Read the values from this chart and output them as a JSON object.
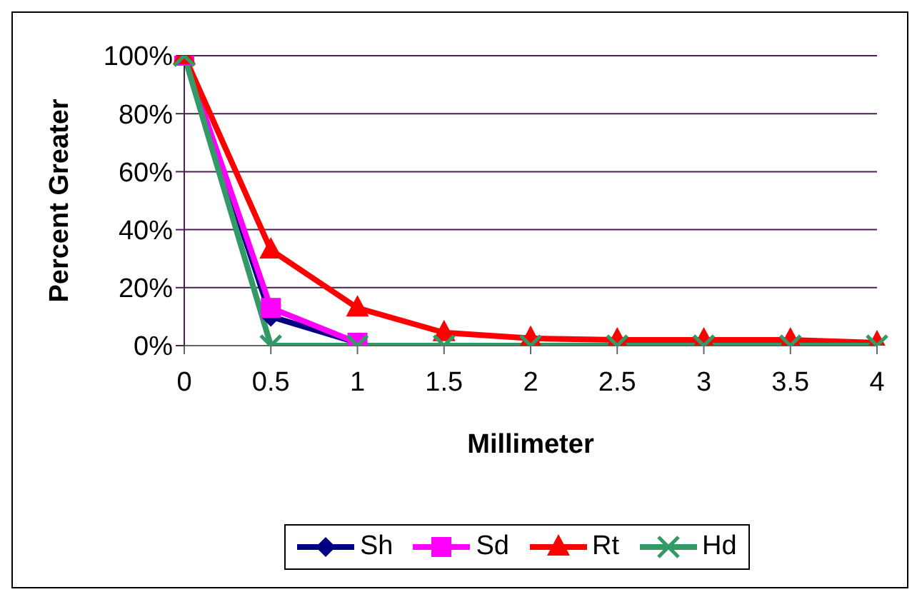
{
  "chart_data": {
    "type": "line",
    "xlabel": "Millimeter",
    "ylabel": "Percent Greater",
    "categories": [
      "0",
      "0.5",
      "1",
      "1.5",
      "2",
      "2.5",
      "3",
      "3.5",
      "4"
    ],
    "series": [
      {
        "name": "Sh",
        "color": "#000080",
        "marker": "diamond",
        "values": [
          100,
          10,
          1,
          null,
          null,
          null,
          null,
          null,
          null
        ]
      },
      {
        "name": "Sd",
        "color": "#ff00ff",
        "marker": "square",
        "values": [
          100,
          13,
          1,
          null,
          null,
          null,
          null,
          null,
          null
        ]
      },
      {
        "name": "Rt",
        "color": "#ff0000",
        "marker": "triangle",
        "values": [
          100,
          33,
          13,
          4.5,
          2.5,
          2,
          2,
          2,
          1
        ]
      },
      {
        "name": "Hd",
        "color": "#339966",
        "marker": "cross",
        "values": [
          100,
          0,
          0,
          0,
          0,
          0,
          0,
          0,
          0
        ]
      }
    ],
    "ylim": [
      0,
      100
    ],
    "yticks": [
      {
        "value": 0,
        "label": "0%"
      },
      {
        "value": 20,
        "label": "20%"
      },
      {
        "value": 40,
        "label": "40%"
      },
      {
        "value": 60,
        "label": "60%"
      },
      {
        "value": 80,
        "label": "80%"
      },
      {
        "value": 100,
        "label": "100%"
      }
    ],
    "grid": "y",
    "legend": "bottom",
    "line_style": "solid"
  }
}
